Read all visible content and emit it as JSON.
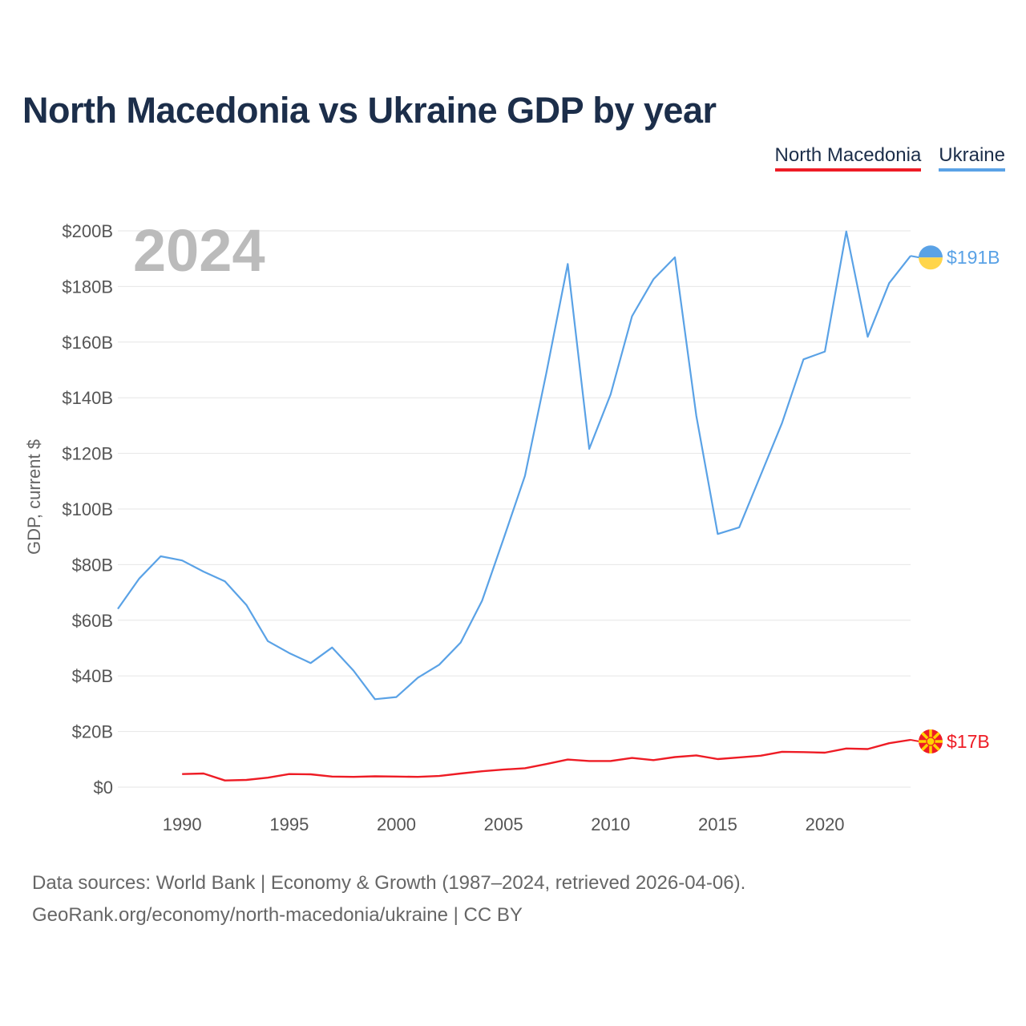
{
  "title": "North Macedonia vs Ukraine GDP by year",
  "legend": [
    {
      "name": "North Macedonia",
      "color": "#ee1c25"
    },
    {
      "name": "Ukraine",
      "color": "#5aa2e6"
    }
  ],
  "year_label": "2024",
  "footer": {
    "line1": "Data sources: World Bank | Economy & Growth (1987–2024, retrieved 2026-04-06).",
    "line2": "GeoRank.org/economy/north-macedonia/ukraine | CC BY"
  },
  "chart_data": {
    "type": "line",
    "title": "North Macedonia vs Ukraine GDP by year",
    "xlabel": "",
    "ylabel": "GDP, current $",
    "xlim": [
      1987,
      2024
    ],
    "ylim": [
      0,
      200
    ],
    "x_ticks": [
      1990,
      1995,
      2000,
      2005,
      2010,
      2015,
      2020
    ],
    "y_ticks": [
      0,
      20,
      40,
      60,
      80,
      100,
      120,
      140,
      160,
      180,
      200
    ],
    "y_tick_labels": [
      "$0",
      "$20B",
      "$40B",
      "$60B",
      "$80B",
      "$100B",
      "$120B",
      "$140B",
      "$160B",
      "$180B",
      "$200B"
    ],
    "grid": true,
    "series": [
      {
        "name": "Ukraine",
        "color": "#5aa2e6",
        "end_label": "$191B",
        "x": [
          1987,
          1988,
          1989,
          1990,
          1991,
          1992,
          1993,
          1994,
          1995,
          1996,
          1997,
          1998,
          1999,
          2000,
          2001,
          2002,
          2003,
          2004,
          2005,
          2006,
          2007,
          2008,
          2009,
          2010,
          2011,
          2012,
          2013,
          2014,
          2015,
          2016,
          2017,
          2018,
          2019,
          2020,
          2021,
          2022,
          2023,
          2024
        ],
        "values": [
          64.1,
          75,
          83,
          81.5,
          77.5,
          74,
          65.5,
          52.5,
          48.2,
          44.6,
          50.2,
          41.9,
          31.6,
          32.4,
          39.3,
          44,
          52,
          67,
          89.2,
          111.9,
          148.9,
          188.1,
          121.6,
          141.2,
          169.3,
          182.6,
          190.5,
          133.5,
          91,
          93.4,
          112.1,
          130.9,
          153.8,
          156.6,
          199.8,
          161.9,
          181.2,
          191
        ]
      },
      {
        "name": "North Macedonia",
        "color": "#ee1c25",
        "end_label": "$17B",
        "x": [
          1990,
          1991,
          1992,
          1993,
          1994,
          1995,
          1996,
          1997,
          1998,
          1999,
          2000,
          2001,
          2002,
          2003,
          2004,
          2005,
          2006,
          2007,
          2008,
          2009,
          2010,
          2011,
          2012,
          2013,
          2014,
          2015,
          2016,
          2017,
          2018,
          2019,
          2020,
          2021,
          2022,
          2023,
          2024
        ],
        "values": [
          4.7,
          4.9,
          2.4,
          2.6,
          3.4,
          4.7,
          4.6,
          3.8,
          3.7,
          3.9,
          3.8,
          3.7,
          4.0,
          4.9,
          5.7,
          6.3,
          6.8,
          8.3,
          9.9,
          9.4,
          9.4,
          10.5,
          9.7,
          10.8,
          11.4,
          10.1,
          10.7,
          11.3,
          12.7,
          12.6,
          12.4,
          13.9,
          13.7,
          15.8,
          17.0
        ]
      }
    ]
  }
}
